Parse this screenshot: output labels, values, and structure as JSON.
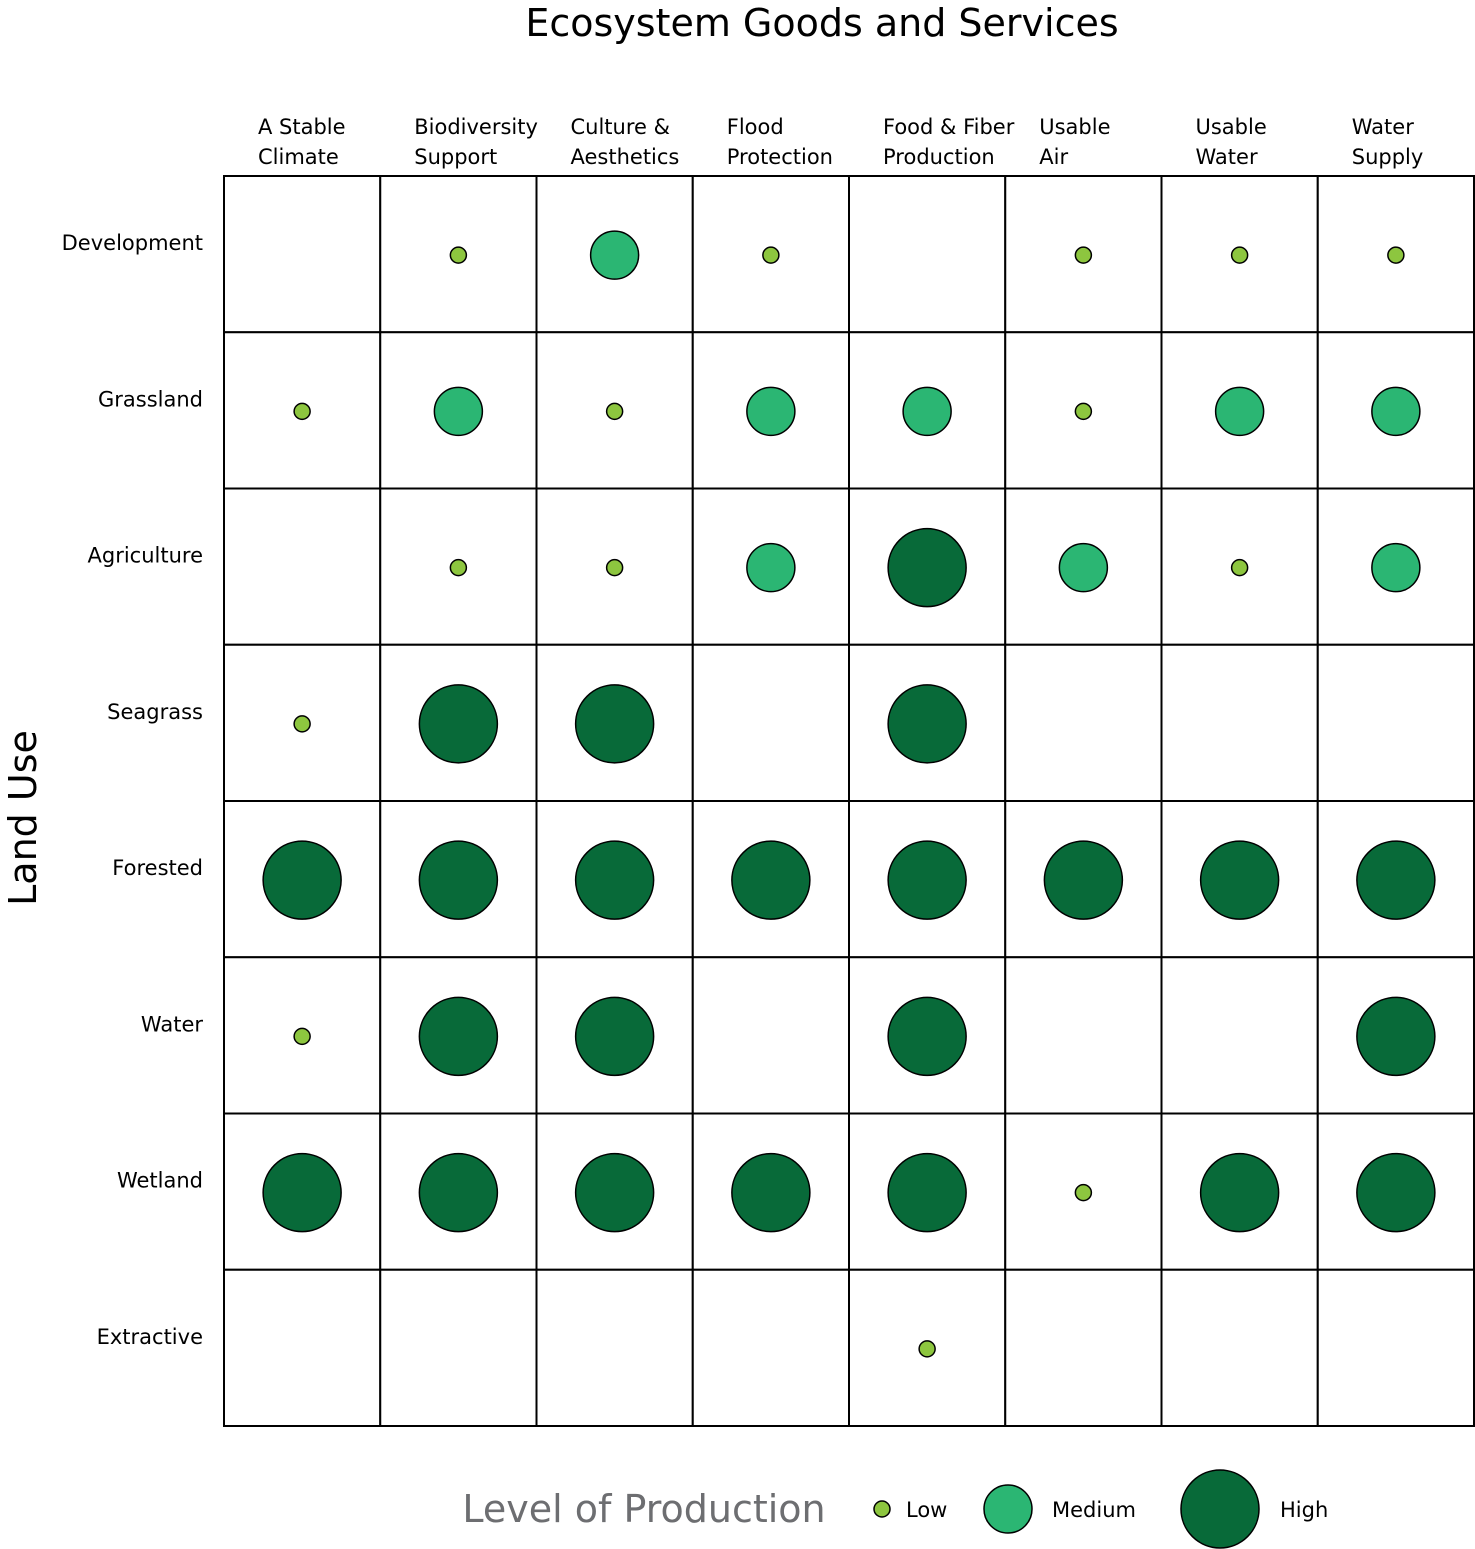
{
  "chart_data": {
    "type": "bubble-matrix",
    "title": "Ecosystem Goods and Services",
    "ylabel": "Land Use",
    "columns": [
      [
        "A Stable",
        "Climate"
      ],
      [
        "Biodiversity",
        "Support"
      ],
      [
        "Culture &",
        "Aesthetics"
      ],
      [
        "Flood",
        "Protection"
      ],
      [
        "Food & Fiber",
        "Production"
      ],
      [
        "Usable",
        "Air"
      ],
      [
        "Usable",
        "Water"
      ],
      [
        "Water",
        "Supply"
      ]
    ],
    "rows": [
      "Development",
      "Grassland",
      "Agriculture",
      "Seagrass",
      "Forested",
      "Water",
      "Wetland",
      "Extractive"
    ],
    "levels": {
      "low": {
        "label": "Low",
        "color": "#8dc63f"
      },
      "medium": {
        "label": "Medium",
        "color": "#2bb673"
      },
      "high": {
        "label": "High",
        "color": "#086a39"
      }
    },
    "values": [
      [
        "",
        "low",
        "medium",
        "low",
        "",
        "low",
        "low",
        "low"
      ],
      [
        "low",
        "medium",
        "low",
        "medium",
        "medium",
        "low",
        "medium",
        "medium"
      ],
      [
        "",
        "low",
        "low",
        "medium",
        "high",
        "medium",
        "low",
        "medium"
      ],
      [
        "low",
        "high",
        "high",
        "",
        "high",
        "",
        "",
        ""
      ],
      [
        "high",
        "high",
        "high",
        "high",
        "high",
        "high",
        "high",
        "high"
      ],
      [
        "low",
        "high",
        "high",
        "",
        "high",
        "",
        "",
        "high"
      ],
      [
        "high",
        "high",
        "high",
        "high",
        "high",
        "low",
        "high",
        "high"
      ],
      [
        "",
        "",
        "",
        "",
        "low",
        "",
        "",
        ""
      ]
    ],
    "legend": {
      "title": "Level of Production",
      "order": [
        "low",
        "medium",
        "high"
      ]
    }
  }
}
